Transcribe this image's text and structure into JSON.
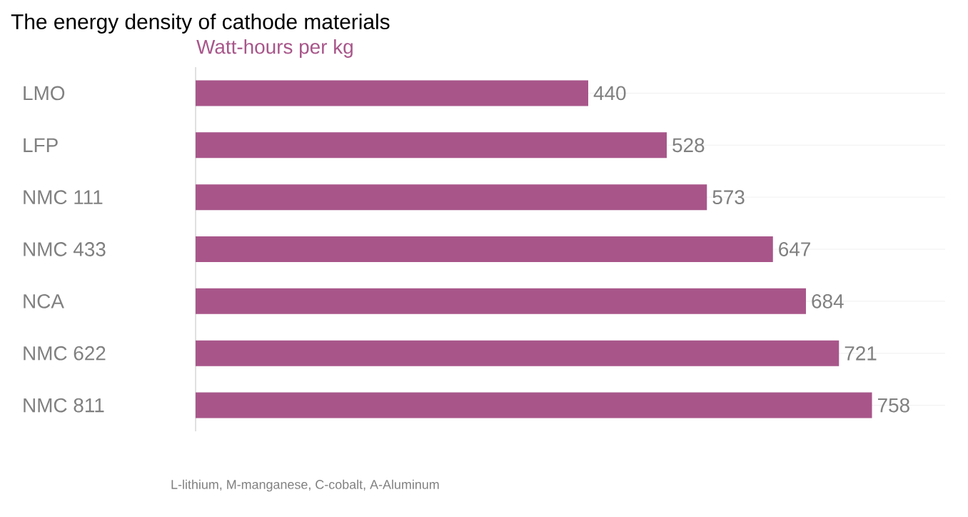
{
  "chart_data": {
    "type": "bar",
    "orientation": "horizontal",
    "title": "The energy density of cathode materials",
    "xlabel": "Watt-hours per kg",
    "categories": [
      "LMO",
      "LFP",
      "NMC 111",
      "NMC 433",
      "NCA",
      "NMC 622",
      "NMC 811"
    ],
    "values": [
      440,
      528,
      573,
      647,
      684,
      721,
      758
    ],
    "color": "#a8568a",
    "xlim": [
      0,
      840
    ],
    "data_labels": true,
    "grid": "y",
    "annotations": [
      "L-lithium, M-manganese, C-cobalt, A-Aluminum"
    ]
  }
}
